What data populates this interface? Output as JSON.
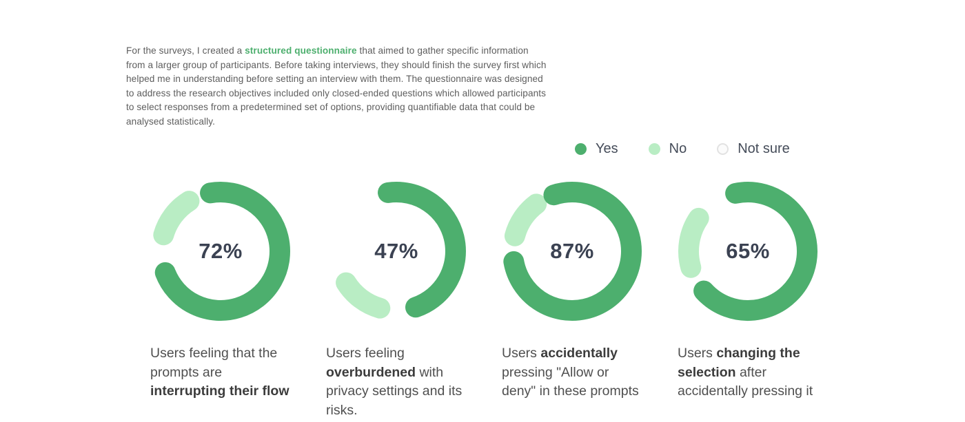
{
  "intro": {
    "segments": [
      {
        "text": "For the surveys, I created a ",
        "style": "normal"
      },
      {
        "text": "structured questionnaire",
        "style": "bold-green"
      },
      {
        "text": " that aimed to gather specific information from a larger group of participants. Before taking interviews, they should finish the survey first which helped me in understanding before setting an interview with them. The questionnaire was designed to address the research objectives included  only closed-ended questions which allowed participants to select responses from a predetermined set of options, providing quantifiable data that could be analysed statistically.",
        "style": "normal"
      }
    ]
  },
  "legend": {
    "items": [
      {
        "label": "Yes",
        "type": "yes"
      },
      {
        "label": "No",
        "type": "no"
      },
      {
        "label": "Not sure",
        "type": "notsure"
      }
    ]
  },
  "colors": {
    "yes": "#4daf6e",
    "no": "#b9edc4",
    "percent_text": "#3b4252"
  },
  "chart_data": [
    {
      "type": "donut",
      "title": "Users feeling that the prompts are interrupting their flow",
      "value_percent": 72,
      "percent_label": "72%",
      "legend": [
        "Yes",
        "No",
        "Not sure"
      ],
      "caption_segments": [
        {
          "text": "Users feeling that the prompts are ",
          "style": "normal"
        },
        {
          "text": "interrupting their flow",
          "style": "bold"
        }
      ],
      "arcs": {
        "green_start": -10,
        "green_sweep": 259,
        "light_start": 286,
        "light_sweep": 42
      }
    },
    {
      "type": "donut",
      "title": "Users feeling overburdened with privacy settings and its risks.",
      "value_percent": 47,
      "percent_label": "47%",
      "legend": [
        "Yes",
        "No",
        "Not sure"
      ],
      "caption_segments": [
        {
          "text": "Users feeling ",
          "style": "normal"
        },
        {
          "text": "overburdened",
          "style": "bold"
        },
        {
          "text": " with privacy settings and its risks.",
          "style": "normal"
        }
      ],
      "arcs": {
        "green_start": -8,
        "green_sweep": 169,
        "light_start": 196,
        "light_sweep": 42
      }
    },
    {
      "type": "donut",
      "title": "Users accidentally pressing \"Allow or deny\" in these prompts",
      "value_percent": 87,
      "percent_label": "87%",
      "legend": [
        "Yes",
        "No",
        "Not sure"
      ],
      "caption_segments": [
        {
          "text": "Users ",
          "style": "normal"
        },
        {
          "text": "accidentally",
          "style": "bold"
        },
        {
          "text": " pressing \"Allow or deny\" in these prompts",
          "style": "normal"
        }
      ],
      "arcs": {
        "green_start": -18,
        "green_sweep": 278,
        "light_start": 285,
        "light_sweep": 38
      }
    },
    {
      "type": "donut",
      "title": "Users changing the selection after accidentally pressing it",
      "value_percent": 65,
      "percent_label": "65%",
      "legend": [
        "Yes",
        "No",
        "Not sure"
      ],
      "caption_segments": [
        {
          "text": "Users ",
          "style": "normal"
        },
        {
          "text": "changing the selection",
          "style": "bold"
        },
        {
          "text": " after accidentally pressing it",
          "style": "normal"
        }
      ],
      "arcs": {
        "green_start": -12,
        "green_sweep": 240,
        "light_start": 254,
        "light_sweep": 50
      }
    }
  ]
}
